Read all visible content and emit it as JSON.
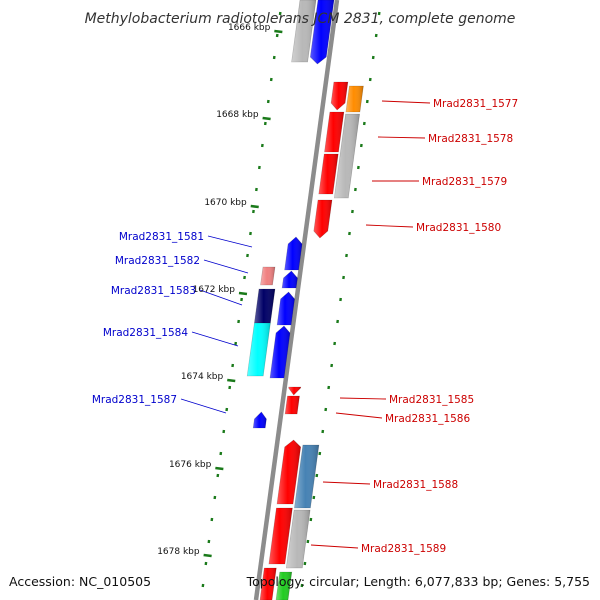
{
  "title": "Methylobacterium radiotolerans JCM 2831, complete genome",
  "accession": "Accession: NC_010505",
  "topology": "Topology: circular; Length: 6,077,833 bp; Genes: 5,755",
  "colors": {
    "backbone": "#8c8c8c",
    "ticks": "#1a7a1a",
    "label_forward": "#cc0000",
    "label_reverse": "#0000cc",
    "red": "#ff0000",
    "blue": "#0000ff",
    "navy": "#000066",
    "cyan": "#00ffff",
    "pink": "#f08080",
    "orange": "#ff8c00",
    "gray": "#b8b8b8",
    "steel": "#4682b4",
    "green": "#22cc22"
  },
  "scale_labels": [
    "1666 kbp",
    "1668 kbp",
    "1670 kbp",
    "1672 kbp",
    "1674 kbp",
    "1676 kbp",
    "1678 kbp"
  ],
  "gene_labels": {
    "left": [
      "Mrad2831_1581",
      "Mrad2831_1582",
      "Mrad2831_1583",
      "Mrad2831_1584",
      "Mrad2831_1587"
    ],
    "right": [
      "Mrad2831_1577",
      "Mrad2831_1578",
      "Mrad2831_1579",
      "Mrad2831_1580",
      "Mrad2831_1585",
      "Mrad2831_1586",
      "Mrad2831_1588",
      "Mrad2831_1589"
    ]
  }
}
